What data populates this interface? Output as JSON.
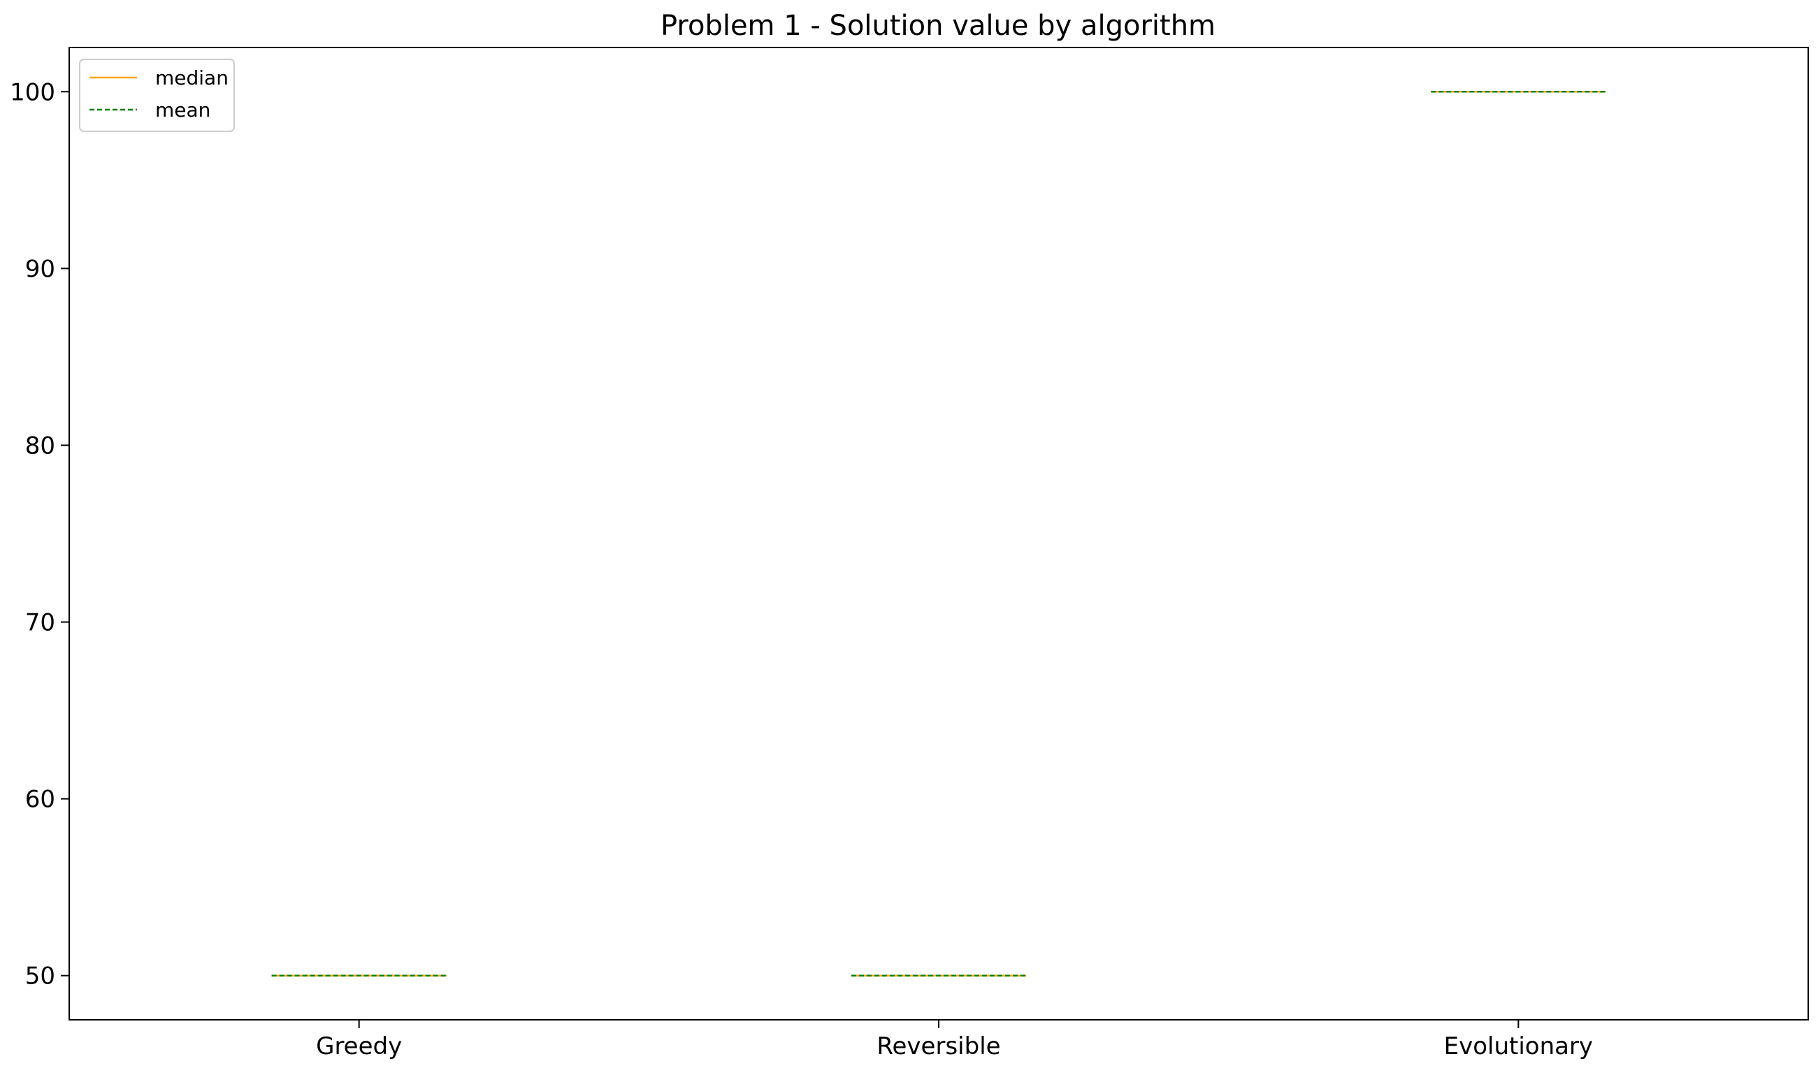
{
  "chart_data": {
    "type": "box",
    "title": "Problem 1 - Solution value by algorithm",
    "xlabel": "",
    "ylabel": "",
    "categories": [
      "Greedy",
      "Reversible",
      "Evolutionary"
    ],
    "series": [
      {
        "name": "median",
        "values": [
          50,
          50,
          100
        ]
      },
      {
        "name": "mean",
        "values": [
          50,
          50,
          100
        ]
      }
    ],
    "ylim": [
      47.5,
      102.5
    ],
    "yticks": [
      50,
      60,
      70,
      80,
      90,
      100
    ],
    "grid": false,
    "legend": {
      "position": "top-left",
      "entries": [
        {
          "label": "median",
          "color": "#ffa500",
          "style": "solid"
        },
        {
          "label": "mean",
          "color": "#008000",
          "style": "dashed"
        }
      ]
    },
    "colors": {
      "median": "#ffa500",
      "mean": "#008000",
      "axes": "#000000"
    }
  }
}
